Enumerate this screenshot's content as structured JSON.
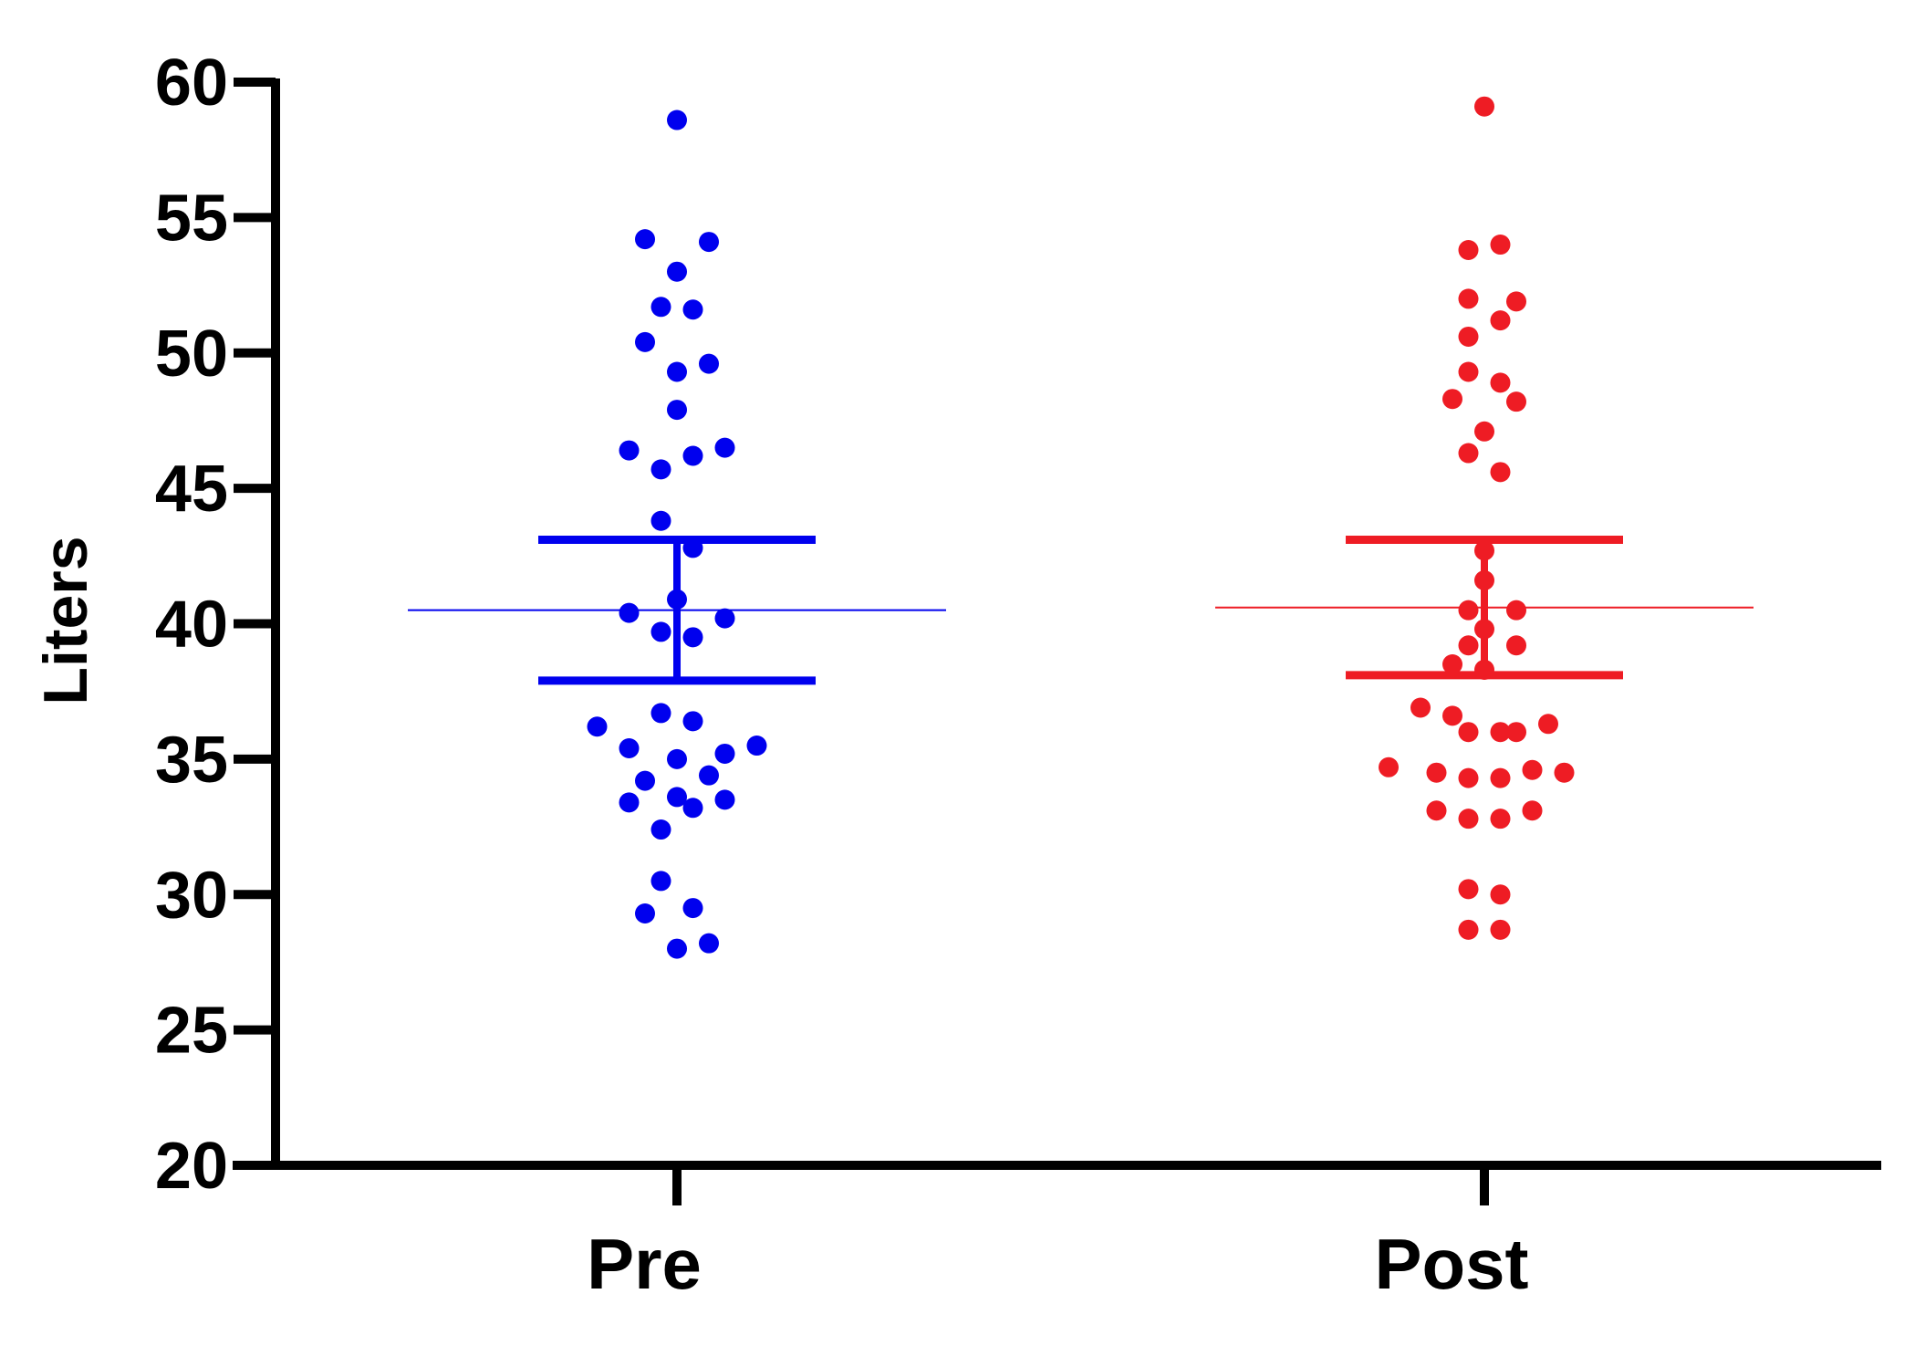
{
  "chart_data": {
    "type": "scatter",
    "title": "",
    "xlabel": "",
    "ylabel": "Liters",
    "ylim": [
      20,
      60
    ],
    "yticks": [
      "20",
      "25",
      "30",
      "35",
      "40",
      "45",
      "50",
      "55",
      "60"
    ],
    "categories": [
      "Pre",
      "Post"
    ],
    "grid": false,
    "series": [
      {
        "category": "Pre",
        "color": "#0000ee",
        "mean": 40.5,
        "sem_upper": 43.1,
        "sem_lower": 37.9,
        "points": [
          {
            "offset": 0,
            "y": 58.6
          },
          {
            "offset": -1,
            "y": 54.2
          },
          {
            "offset": 1,
            "y": 54.1
          },
          {
            "offset": 0,
            "y": 53.0
          },
          {
            "offset": -0.5,
            "y": 51.7
          },
          {
            "offset": 0.5,
            "y": 51.6
          },
          {
            "offset": -1,
            "y": 50.4
          },
          {
            "offset": 1,
            "y": 49.6
          },
          {
            "offset": 0,
            "y": 49.3
          },
          {
            "offset": 0,
            "y": 47.9
          },
          {
            "offset": -1.5,
            "y": 46.4
          },
          {
            "offset": 0.5,
            "y": 46.2
          },
          {
            "offset": 1.5,
            "y": 46.5
          },
          {
            "offset": -0.5,
            "y": 45.7
          },
          {
            "offset": -0.5,
            "y": 43.8
          },
          {
            "offset": 0.5,
            "y": 42.8
          },
          {
            "offset": 0,
            "y": 40.9
          },
          {
            "offset": -1.5,
            "y": 40.4
          },
          {
            "offset": 1.5,
            "y": 40.2
          },
          {
            "offset": -0.5,
            "y": 39.7
          },
          {
            "offset": 0.5,
            "y": 39.5
          },
          {
            "offset": -0.5,
            "y": 36.7
          },
          {
            "offset": 0.5,
            "y": 36.4
          },
          {
            "offset": -2.5,
            "y": 36.2
          },
          {
            "offset": 2.5,
            "y": 35.5
          },
          {
            "offset": -1.5,
            "y": 35.4
          },
          {
            "offset": 0,
            "y": 35.0
          },
          {
            "offset": 1.5,
            "y": 35.2
          },
          {
            "offset": -1,
            "y": 34.2
          },
          {
            "offset": 1,
            "y": 34.4
          },
          {
            "offset": -1.5,
            "y": 33.4
          },
          {
            "offset": 0,
            "y": 33.6
          },
          {
            "offset": 0.5,
            "y": 33.2
          },
          {
            "offset": 1.5,
            "y": 33.5
          },
          {
            "offset": -0.5,
            "y": 32.4
          },
          {
            "offset": -0.5,
            "y": 30.5
          },
          {
            "offset": -1,
            "y": 29.3
          },
          {
            "offset": 0.5,
            "y": 29.5
          },
          {
            "offset": 0,
            "y": 28.0
          },
          {
            "offset": 1,
            "y": 28.2
          }
        ]
      },
      {
        "category": "Post",
        "color": "#ee1c24",
        "mean": 40.6,
        "sem_upper": 43.1,
        "sem_lower": 38.1,
        "points": [
          {
            "offset": 0,
            "y": 59.1
          },
          {
            "offset": -0.5,
            "y": 53.8
          },
          {
            "offset": 0.5,
            "y": 54.0
          },
          {
            "offset": -0.5,
            "y": 52.0
          },
          {
            "offset": 1,
            "y": 51.9
          },
          {
            "offset": 0.5,
            "y": 51.2
          },
          {
            "offset": -0.5,
            "y": 50.6
          },
          {
            "offset": -0.5,
            "y": 49.3
          },
          {
            "offset": 0.5,
            "y": 48.9
          },
          {
            "offset": -1,
            "y": 48.3
          },
          {
            "offset": 1,
            "y": 48.2
          },
          {
            "offset": 0,
            "y": 47.1
          },
          {
            "offset": -0.5,
            "y": 46.3
          },
          {
            "offset": 0.5,
            "y": 45.6
          },
          {
            "offset": 0,
            "y": 42.7
          },
          {
            "offset": 0,
            "y": 41.6
          },
          {
            "offset": -0.5,
            "y": 40.5
          },
          {
            "offset": 1,
            "y": 40.5
          },
          {
            "offset": 0,
            "y": 39.8
          },
          {
            "offset": -0.5,
            "y": 39.2
          },
          {
            "offset": 1,
            "y": 39.2
          },
          {
            "offset": -1,
            "y": 38.5
          },
          {
            "offset": 0,
            "y": 38.3
          },
          {
            "offset": -2,
            "y": 36.9
          },
          {
            "offset": -1,
            "y": 36.6
          },
          {
            "offset": -0.5,
            "y": 36.0
          },
          {
            "offset": 0.5,
            "y": 36.0
          },
          {
            "offset": 1,
            "y": 36.0
          },
          {
            "offset": 2,
            "y": 36.3
          },
          {
            "offset": -3,
            "y": 34.7
          },
          {
            "offset": -1.5,
            "y": 34.5
          },
          {
            "offset": -0.5,
            "y": 34.3
          },
          {
            "offset": 0.5,
            "y": 34.3
          },
          {
            "offset": 1.5,
            "y": 34.6
          },
          {
            "offset": 2.5,
            "y": 34.5
          },
          {
            "offset": -1.5,
            "y": 33.1
          },
          {
            "offset": -0.5,
            "y": 32.8
          },
          {
            "offset": 0.5,
            "y": 32.8
          },
          {
            "offset": 1.5,
            "y": 33.1
          },
          {
            "offset": -0.5,
            "y": 30.2
          },
          {
            "offset": 0.5,
            "y": 30.0
          },
          {
            "offset": -0.5,
            "y": 28.7
          },
          {
            "offset": 0.5,
            "y": 28.7
          }
        ]
      }
    ]
  }
}
